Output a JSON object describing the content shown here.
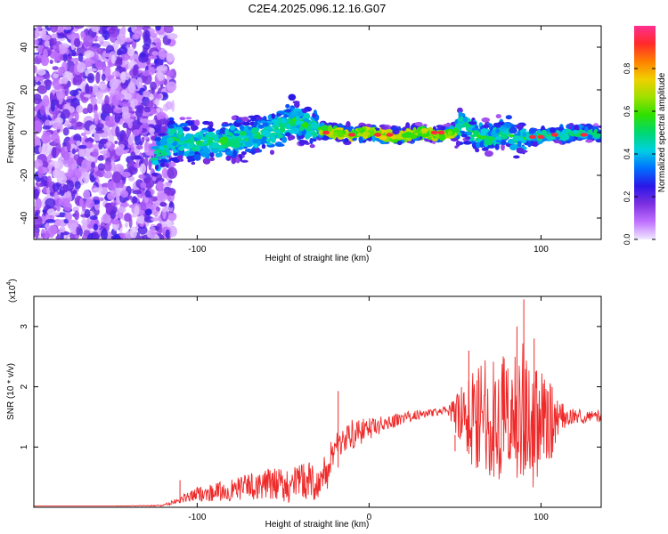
{
  "figure": {
    "title": "C2E4.2025.096.12.16.G07"
  },
  "chart_data": [
    {
      "type": "heatmap",
      "xlabel": "Height of straight line (km)",
      "ylabel": "Frequency (Hz)",
      "xlim": [
        -195,
        135
      ],
      "ylim": [
        -50,
        50
      ],
      "xticks": [
        -100,
        0,
        100
      ],
      "yticks": [
        -40,
        -20,
        0,
        20,
        40
      ],
      "colorbar": {
        "label": "Normalized spectral amplitude",
        "range": [
          0,
          1
        ],
        "ticks": [
          0.0,
          0.2,
          0.4,
          0.6,
          0.8
        ],
        "tick_labels": [
          "0.0",
          "0.2",
          "0.4",
          "0.6",
          "0.8"
        ],
        "colors": [
          "#f0e8ff",
          "#c070ff",
          "#7b2fe0",
          "#2a18e8",
          "#0070ff",
          "#00d0e0",
          "#00d870",
          "#30e000",
          "#a0e000",
          "#f0d000",
          "#ff8000",
          "#ff2a2a",
          "#ff3090"
        ]
      },
      "features": {
        "noise_region_x": [
          -195,
          -120
        ],
        "ridge_points": [
          [
            -125,
            -12
          ],
          [
            -115,
            -3
          ],
          [
            -100,
            -5
          ],
          [
            -85,
            -4
          ],
          [
            -70,
            -2
          ],
          [
            -55,
            1
          ],
          [
            -45,
            6
          ],
          [
            -35,
            3
          ],
          [
            -30,
            1
          ],
          [
            -20,
            0
          ],
          [
            -10,
            -1
          ],
          [
            0,
            0
          ],
          [
            15,
            -2
          ],
          [
            30,
            0
          ],
          [
            40,
            -1
          ],
          [
            50,
            0
          ],
          [
            55,
            5
          ],
          [
            60,
            0
          ],
          [
            70,
            -3
          ],
          [
            80,
            1
          ],
          [
            85,
            -3
          ],
          [
            95,
            -2
          ],
          [
            110,
            -1
          ],
          [
            125,
            0
          ],
          [
            135,
            -1
          ]
        ],
        "peak_points": [
          [
            -25,
            0
          ],
          [
            -10,
            -1
          ],
          [
            5,
            -1
          ],
          [
            12,
            -1
          ],
          [
            38,
            0
          ],
          [
            42,
            0
          ],
          [
            95,
            -2
          ],
          [
            100,
            -2
          ],
          [
            108,
            -1
          ],
          [
            125,
            -1
          ]
        ]
      }
    },
    {
      "type": "line",
      "xlabel": "Height of straight line (km)",
      "ylabel": "SNR (10 * v/v)",
      "yscale_label": "(x10",
      "yscale_exponent": "4",
      "xlim": [
        -195,
        135
      ],
      "ylim": [
        0,
        3.5
      ],
      "xticks": [
        -100,
        0,
        100
      ],
      "yticks": [
        1,
        2,
        3
      ],
      "series": [
        {
          "color": "#ee2a2a",
          "x": [
            -195,
            -150,
            -120,
            -110,
            -100,
            -90,
            -80,
            -70,
            -60,
            -50,
            -45,
            -40,
            -35,
            -30,
            -25,
            -20,
            -18,
            -10,
            0,
            10,
            20,
            30,
            40,
            45,
            50,
            55,
            60,
            65,
            70,
            75,
            80,
            85,
            90,
            95,
            100,
            105,
            110,
            115,
            120,
            125,
            130,
            135
          ],
          "y": [
            0.02,
            0.02,
            0.03,
            0.12,
            0.22,
            0.25,
            0.28,
            0.35,
            0.38,
            0.38,
            0.35,
            0.42,
            0.45,
            0.4,
            0.55,
            1.0,
            1.1,
            1.2,
            1.3,
            1.4,
            1.48,
            1.55,
            1.58,
            1.6,
            1.55,
            1.45,
            1.5,
            1.6,
            1.5,
            1.45,
            1.6,
            1.5,
            1.55,
            1.4,
            1.45,
            1.4,
            1.5,
            1.5,
            1.52,
            1.5,
            1.55,
            1.5
          ],
          "amplitude": [
            0.0,
            0.0,
            0.01,
            0.06,
            0.12,
            0.15,
            0.18,
            0.22,
            0.25,
            0.28,
            0.3,
            0.32,
            0.3,
            0.32,
            0.35,
            0.3,
            0.28,
            0.25,
            0.18,
            0.12,
            0.1,
            0.08,
            0.06,
            0.08,
            0.3,
            0.6,
            0.85,
            0.95,
            1.0,
            1.05,
            1.1,
            1.2,
            1.3,
            1.1,
            0.9,
            0.7,
            0.3,
            0.15,
            0.12,
            0.12,
            0.1,
            0.1
          ]
        }
      ],
      "spikes": [
        [
          -18,
          1.93
        ],
        [
          -110,
          0.45
        ],
        [
          58,
          2.6
        ],
        [
          90,
          3.45
        ],
        [
          86,
          3.0
        ],
        [
          96,
          2.8
        ],
        [
          50,
          1.2
        ]
      ]
    }
  ]
}
